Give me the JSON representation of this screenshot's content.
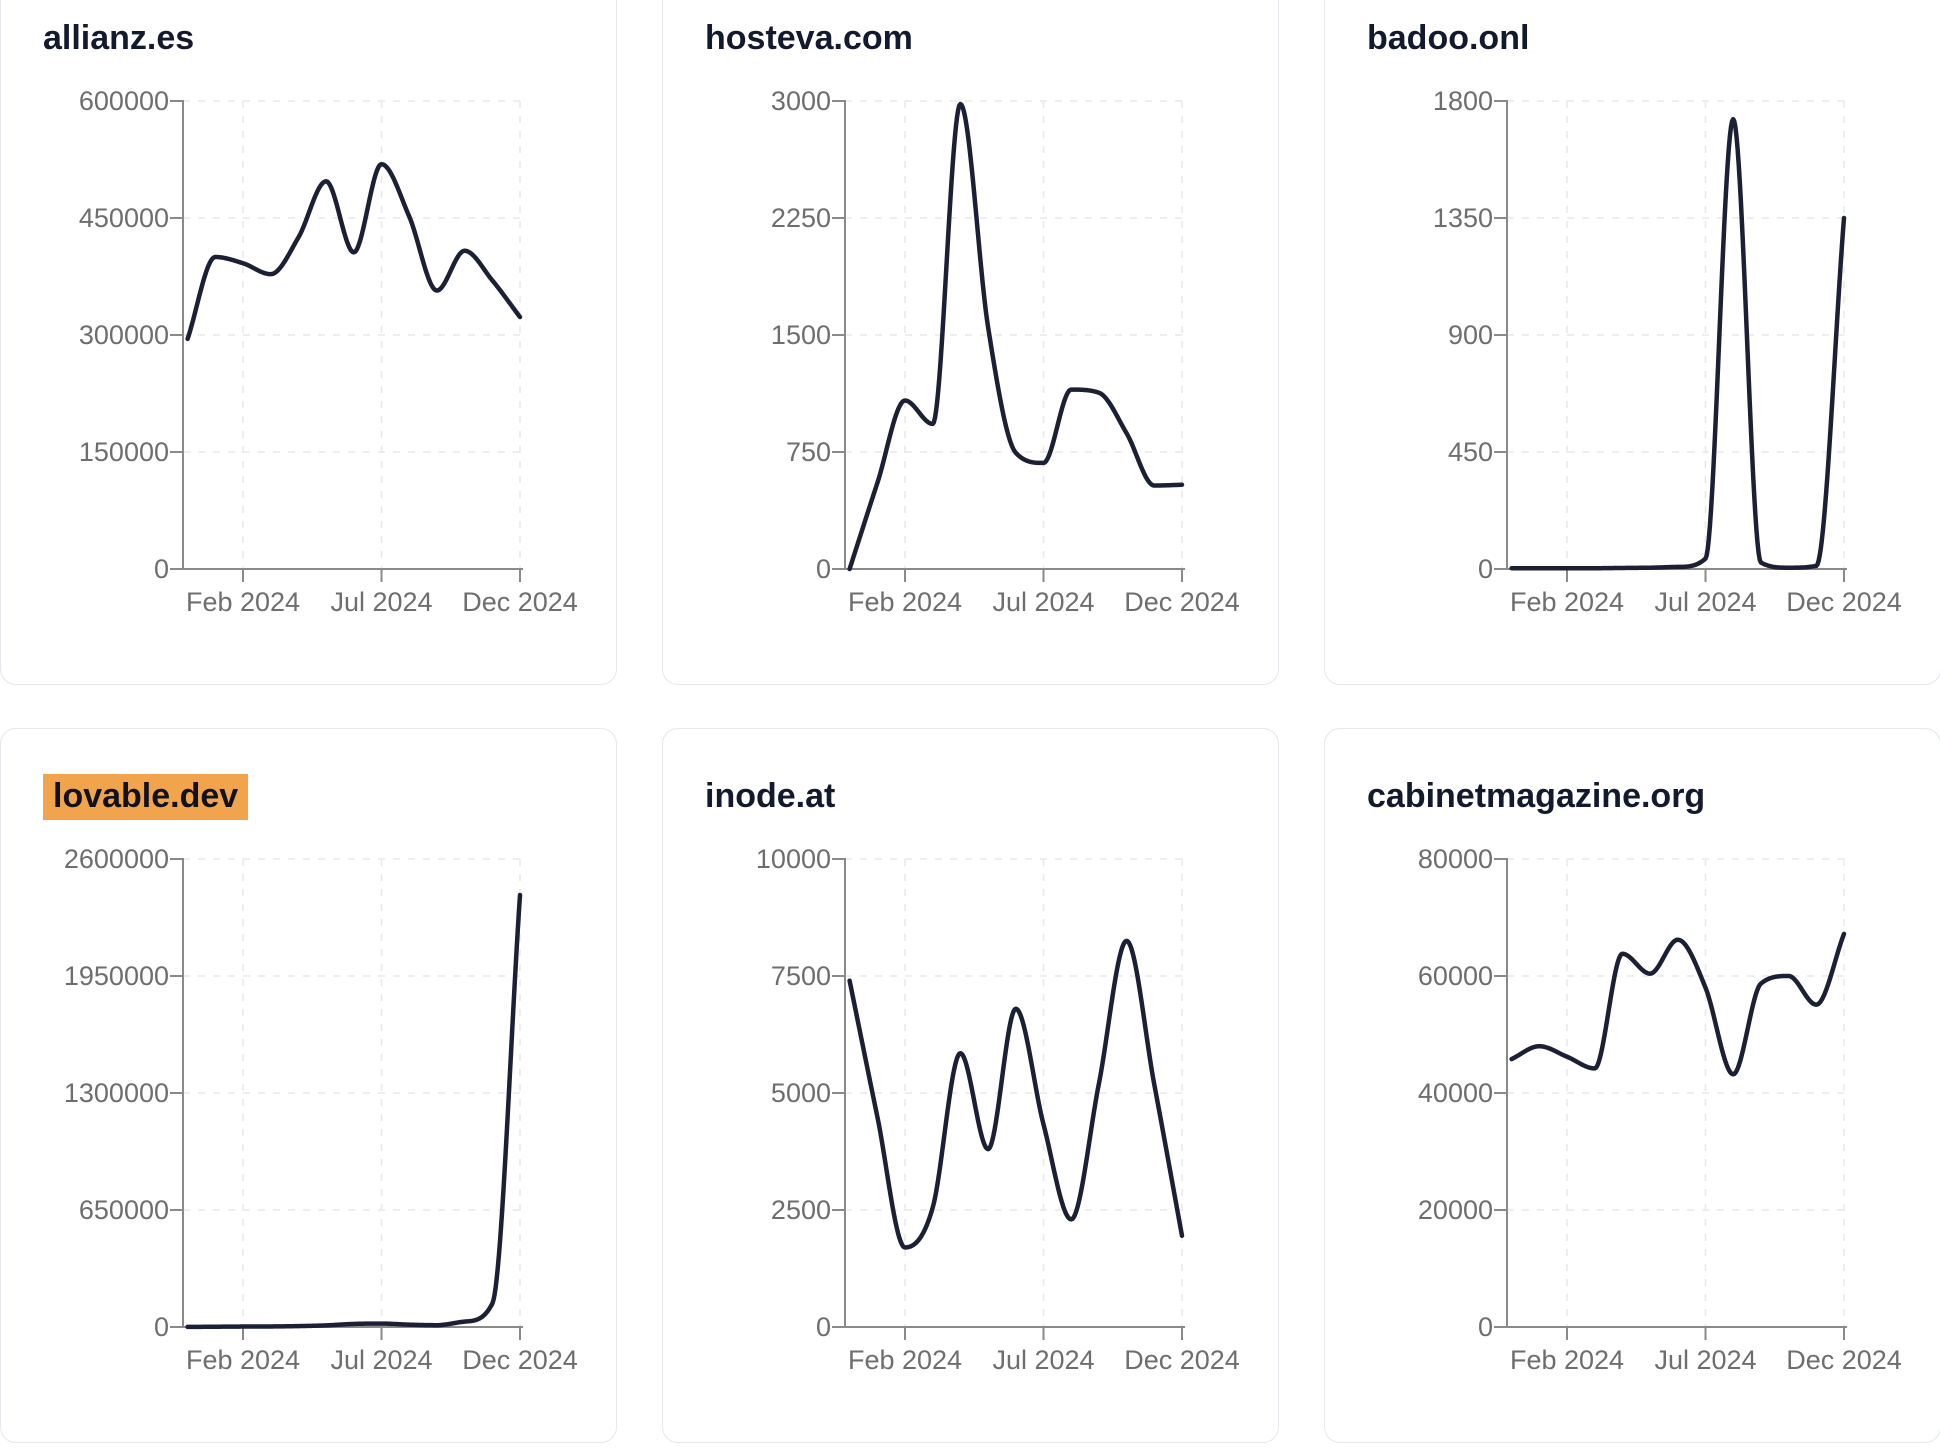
{
  "theme": {
    "line_color": "#1b2035",
    "title_color": "#141a2e",
    "highlight_color": "#f2a44d",
    "tick_label_color": "#6e6e6e",
    "axis_color": "#8a8a8a",
    "gridline_color": "#e9e9e9",
    "card_border_color": "#e4e7ec",
    "card_background": "#ffffff"
  },
  "x_axis": {
    "tick_month_indices": [
      2,
      7,
      12
    ]
  },
  "chart_data": [
    {
      "type": "line",
      "title": "allianz.es",
      "highlighted": false,
      "x": [
        "2023-12",
        "2024-01",
        "2024-02",
        "2024-03",
        "2024-04",
        "2024-05",
        "2024-06",
        "2024-07",
        "2024-08",
        "2024-09",
        "2024-10",
        "2024-11",
        "2024-12"
      ],
      "x_tick_labels": [
        "Feb 2024",
        "Jul 2024",
        "Dec 2024"
      ],
      "y_ticks": [
        0,
        150000,
        300000,
        450000,
        600000
      ],
      "ylim": [
        0,
        600000
      ],
      "grid": "dashed",
      "legend": false,
      "values": [
        295000,
        400000,
        392000,
        378000,
        425000,
        497000,
        406000,
        519000,
        452000,
        357000,
        408000,
        370000,
        323000
      ]
    },
    {
      "type": "line",
      "title": "hosteva.com",
      "highlighted": false,
      "x": [
        "2023-12",
        "2024-01",
        "2024-02",
        "2024-03",
        "2024-04",
        "2024-05",
        "2024-06",
        "2024-07",
        "2024-08",
        "2024-09",
        "2024-10",
        "2024-11",
        "2024-12"
      ],
      "x_tick_labels": [
        "Feb 2024",
        "Jul 2024",
        "Dec 2024"
      ],
      "y_ticks": [
        0,
        750,
        1500,
        2250,
        3000
      ],
      "ylim": [
        0,
        3000
      ],
      "grid": "dashed",
      "legend": false,
      "values": [
        0,
        550,
        1080,
        930,
        2980,
        1550,
        745,
        680,
        1150,
        1130,
        870,
        535,
        540
      ]
    },
    {
      "type": "line",
      "title": "badoo.onl",
      "highlighted": false,
      "x": [
        "2023-12",
        "2024-01",
        "2024-02",
        "2024-03",
        "2024-04",
        "2024-05",
        "2024-06",
        "2024-07",
        "2024-08",
        "2024-09",
        "2024-10",
        "2024-11",
        "2024-12"
      ],
      "x_tick_labels": [
        "Feb 2024",
        "Jul 2024",
        "Dec 2024"
      ],
      "y_ticks": [
        0,
        450,
        900,
        1350,
        1800
      ],
      "ylim": [
        0,
        1800
      ],
      "grid": "dashed",
      "legend": false,
      "values": [
        3,
        3,
        3,
        3,
        4,
        5,
        8,
        40,
        1730,
        25,
        5,
        12,
        1350
      ]
    },
    {
      "type": "line",
      "title": "lovable.dev",
      "highlighted": true,
      "x": [
        "2023-12",
        "2024-01",
        "2024-02",
        "2024-03",
        "2024-04",
        "2024-05",
        "2024-06",
        "2024-07",
        "2024-08",
        "2024-09",
        "2024-10",
        "2024-11",
        "2024-12"
      ],
      "x_tick_labels": [
        "Feb 2024",
        "Jul 2024",
        "Dec 2024"
      ],
      "y_ticks": [
        0,
        650000,
        1300000,
        1950000,
        2600000
      ],
      "ylim": [
        0,
        2600000
      ],
      "grid": "dashed",
      "legend": false,
      "values": [
        500,
        1500,
        2500,
        3000,
        5000,
        9000,
        17000,
        19000,
        13000,
        10000,
        30000,
        130000,
        2400000
      ]
    },
    {
      "type": "line",
      "title": "inode.at",
      "highlighted": false,
      "x": [
        "2023-12",
        "2024-01",
        "2024-02",
        "2024-03",
        "2024-04",
        "2024-05",
        "2024-06",
        "2024-07",
        "2024-08",
        "2024-09",
        "2024-10",
        "2024-11",
        "2024-12"
      ],
      "x_tick_labels": [
        "Feb 2024",
        "Jul 2024",
        "Dec 2024"
      ],
      "y_ticks": [
        0,
        2500,
        5000,
        7500,
        10000
      ],
      "ylim": [
        0,
        10000
      ],
      "grid": "dashed",
      "legend": false,
      "values": [
        7400,
        4500,
        1700,
        2550,
        5850,
        3800,
        6800,
        4330,
        2300,
        5200,
        8250,
        5180,
        1950
      ]
    },
    {
      "type": "line",
      "title": "cabinetmagazine.org",
      "highlighted": false,
      "x": [
        "2023-12",
        "2024-01",
        "2024-02",
        "2024-03",
        "2024-04",
        "2024-05",
        "2024-06",
        "2024-07",
        "2024-08",
        "2024-09",
        "2024-10",
        "2024-11",
        "2024-12"
      ],
      "x_tick_labels": [
        "Feb 2024",
        "Jul 2024",
        "Dec 2024"
      ],
      "y_ticks": [
        0,
        20000,
        40000,
        60000,
        80000
      ],
      "ylim": [
        0,
        80000
      ],
      "grid": "dashed",
      "legend": false,
      "values": [
        45800,
        48000,
        46200,
        44200,
        63800,
        60400,
        66200,
        58000,
        43200,
        58700,
        60000,
        55100,
        67200
      ]
    }
  ]
}
